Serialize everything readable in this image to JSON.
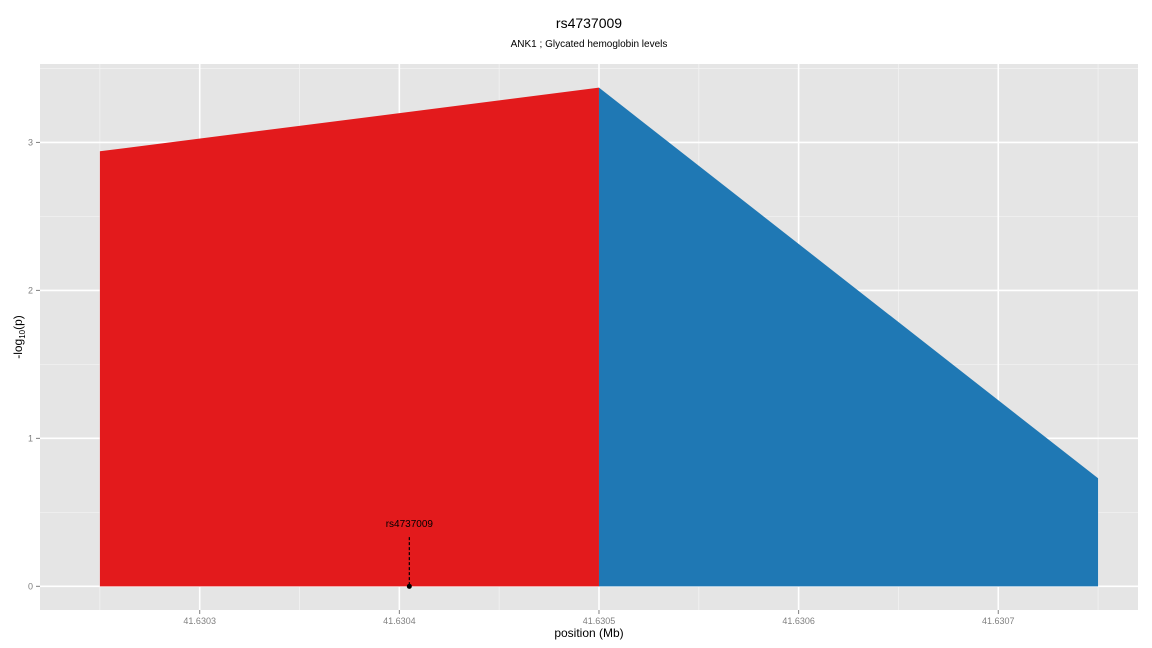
{
  "chart_data": {
    "type": "area",
    "title": "rs4737009",
    "subtitle": "ANK1 ; Glycated hemoglobin levels",
    "xlabel": "position (Mb)",
    "ylabel_main": "-log",
    "ylabel_sub": "10",
    "ylabel_end": "(p)",
    "xlim": [
      41.63022,
      41.63077
    ],
    "ylim": [
      -0.16,
      3.53
    ],
    "x_ticks": [
      41.6303,
      41.6304,
      41.6305,
      41.6306,
      41.6307
    ],
    "x_tick_labels": [
      "41.6303",
      "41.6304",
      "41.6305",
      "41.6306",
      "41.6307"
    ],
    "y_ticks": [
      0,
      1,
      2,
      3
    ],
    "y_tick_labels": [
      "0",
      "1",
      "2",
      "3"
    ],
    "grid": true,
    "series": [
      {
        "color": "#e31a1c",
        "points": [
          [
            41.63025,
            0
          ],
          [
            41.63025,
            2.94
          ],
          [
            41.6305,
            3.37
          ],
          [
            41.6305,
            0
          ]
        ]
      },
      {
        "color": "#1f78b4",
        "points": [
          [
            41.6305,
            0
          ],
          [
            41.6305,
            3.37
          ],
          [
            41.63075,
            0.73
          ],
          [
            41.63075,
            0
          ]
        ]
      }
    ],
    "annotation": {
      "label": "rs4737009",
      "x": 41.630405,
      "y": 0,
      "label_y": 0.4
    }
  }
}
